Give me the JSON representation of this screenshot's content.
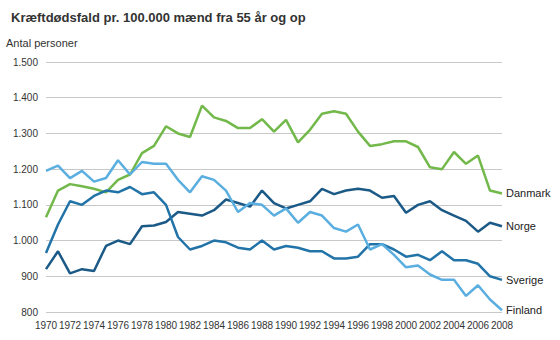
{
  "chart_data": {
    "type": "line",
    "title": "Kræftdødsfald pr. 100.000 mænd fra 55 år og op",
    "y_label": "Antal personer",
    "x": [
      1970,
      1971,
      1972,
      1973,
      1974,
      1975,
      1976,
      1977,
      1978,
      1979,
      1980,
      1981,
      1982,
      1983,
      1984,
      1985,
      1986,
      1987,
      1988,
      1989,
      1990,
      1991,
      1992,
      1993,
      1994,
      1995,
      1996,
      1997,
      1998,
      1999,
      2000,
      2001,
      2002,
      2003,
      2004,
      2005,
      2006,
      2007,
      2008
    ],
    "series": [
      {
        "name": "Danmark",
        "color": "#72b84a",
        "values": [
          1065,
          1140,
          1158,
          1152,
          1145,
          1135,
          1170,
          1185,
          1245,
          1265,
          1320,
          1300,
          1290,
          1378,
          1345,
          1335,
          1315,
          1315,
          1340,
          1305,
          1338,
          1275,
          1310,
          1355,
          1362,
          1355,
          1305,
          1265,
          1270,
          1278,
          1278,
          1262,
          1205,
          1200,
          1248,
          1215,
          1238,
          1140,
          1132
        ]
      },
      {
        "name": "Norge",
        "color": "#1b5a87",
        "values": [
          920,
          970,
          908,
          920,
          915,
          985,
          1000,
          990,
          1040,
          1042,
          1052,
          1080,
          1075,
          1070,
          1085,
          1115,
          1105,
          1095,
          1140,
          1105,
          1090,
          1100,
          1110,
          1145,
          1130,
          1140,
          1145,
          1140,
          1120,
          1125,
          1078,
          1100,
          1110,
          1085,
          1070,
          1055,
          1025,
          1050,
          1040
        ]
      },
      {
        "name": "Sverige",
        "color": "#2173a8",
        "values": [
          965,
          1045,
          1110,
          1100,
          1125,
          1140,
          1135,
          1150,
          1130,
          1135,
          1100,
          1010,
          975,
          985,
          1000,
          995,
          980,
          975,
          1000,
          975,
          985,
          980,
          970,
          970,
          950,
          950,
          955,
          990,
          990,
          975,
          955,
          960,
          945,
          970,
          945,
          945,
          935,
          900,
          890
        ]
      },
      {
        "name": "Finland",
        "color": "#5aaee0",
        "values": [
          1195,
          1210,
          1175,
          1195,
          1165,
          1175,
          1225,
          1185,
          1220,
          1215,
          1215,
          1170,
          1135,
          1180,
          1170,
          1140,
          1080,
          1105,
          1100,
          1070,
          1090,
          1050,
          1080,
          1070,
          1035,
          1025,
          1045,
          975,
          990,
          960,
          925,
          930,
          905,
          890,
          890,
          845,
          875,
          835,
          805
        ]
      }
    ],
    "xlim": [
      1970,
      2008
    ],
    "xticks": [
      1970,
      1972,
      1974,
      1976,
      1978,
      1980,
      1982,
      1984,
      1986,
      1988,
      1990,
      1992,
      1994,
      1996,
      1998,
      2000,
      2002,
      2004,
      2006,
      2008
    ],
    "ylim": [
      800,
      1500
    ],
    "yticks": [
      800,
      900,
      {
        "value": 1000,
        "label": "1.000"
      },
      {
        "value": 1100,
        "label": "1.100"
      },
      {
        "value": 1200,
        "label": "1.200"
      },
      {
        "value": 1300,
        "label": "1.300"
      },
      {
        "value": 1400,
        "label": "1.400"
      },
      {
        "value": 1500,
        "label": "1.500"
      }
    ],
    "grid": true
  }
}
